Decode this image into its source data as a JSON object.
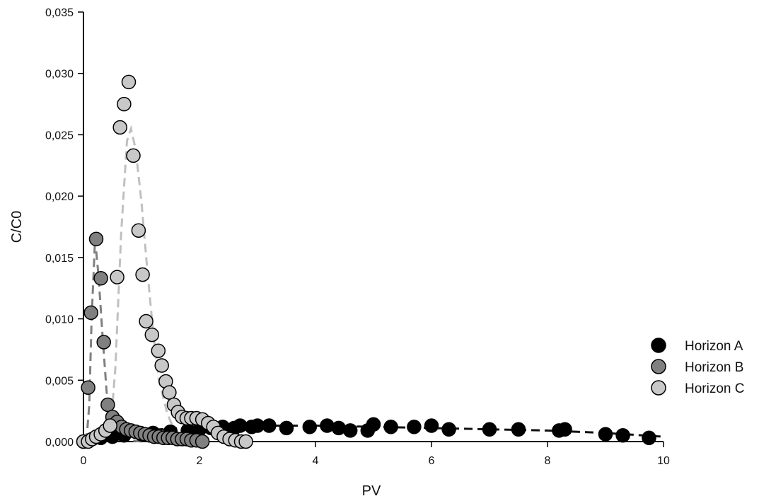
{
  "chart_data": {
    "type": "scatter",
    "title": "",
    "xlabel": "PV",
    "ylabel": "C/C0",
    "xlim": [
      0,
      10
    ],
    "ylim": [
      0,
      0.035
    ],
    "x_ticks": [
      0,
      2,
      4,
      6,
      8,
      10
    ],
    "x_tick_labels": [
      "0",
      "2",
      "4",
      "6",
      "8",
      "10"
    ],
    "y_ticks": [
      0,
      0.005,
      0.01,
      0.015,
      0.02,
      0.025,
      0.03,
      0.035
    ],
    "y_tick_labels": [
      "0,000",
      "0,005",
      "0,010",
      "0,015",
      "0,020",
      "0,025",
      "0,030",
      "0,035"
    ],
    "grid": false,
    "legend_position": "right",
    "series": [
      {
        "name": "Horizon A",
        "marker_color": "#000000",
        "fit_color": "#111111",
        "points": [
          [
            0.3,
            0.0003
          ],
          [
            0.5,
            0.0004
          ],
          [
            0.7,
            0.0005
          ],
          [
            1.0,
            0.0006
          ],
          [
            1.2,
            0.0007
          ],
          [
            1.5,
            0.0008
          ],
          [
            1.8,
            0.0009
          ],
          [
            2.0,
            0.001
          ],
          [
            2.2,
            0.0011
          ],
          [
            2.4,
            0.0012
          ],
          [
            2.6,
            0.0011
          ],
          [
            2.7,
            0.0013
          ],
          [
            2.9,
            0.0012
          ],
          [
            3.0,
            0.0013
          ],
          [
            3.2,
            0.0013
          ],
          [
            3.5,
            0.0011
          ],
          [
            3.9,
            0.0012
          ],
          [
            4.2,
            0.0013
          ],
          [
            4.4,
            0.0011
          ],
          [
            4.6,
            0.0009
          ],
          [
            4.9,
            0.0009
          ],
          [
            5.0,
            0.0014
          ],
          [
            5.3,
            0.0012
          ],
          [
            5.7,
            0.0012
          ],
          [
            6.0,
            0.0013
          ],
          [
            6.3,
            0.001
          ],
          [
            7.0,
            0.001
          ],
          [
            7.5,
            0.001
          ],
          [
            8.2,
            0.0009
          ],
          [
            8.3,
            0.001
          ],
          [
            9.0,
            0.0006
          ],
          [
            9.3,
            0.0005
          ],
          [
            9.75,
            0.0003
          ]
        ],
        "fit": [
          [
            0.1,
            0.0
          ],
          [
            0.5,
            0.0006
          ],
          [
            1.0,
            0.0009
          ],
          [
            2.0,
            0.0012
          ],
          [
            3.0,
            0.0013
          ],
          [
            4.0,
            0.0013
          ],
          [
            5.0,
            0.0012
          ],
          [
            6.0,
            0.0011
          ],
          [
            7.0,
            0.001
          ],
          [
            8.0,
            0.0009
          ],
          [
            9.0,
            0.0007
          ],
          [
            10.0,
            0.0004
          ]
        ]
      },
      {
        "name": "Horizon B",
        "marker_color": "#808080",
        "fit_color": "#808080",
        "points": [
          [
            0.0,
            0.0
          ],
          [
            0.08,
            0.0044
          ],
          [
            0.13,
            0.0105
          ],
          [
            0.22,
            0.0165
          ],
          [
            0.3,
            0.0133
          ],
          [
            0.35,
            0.0081
          ],
          [
            0.42,
            0.003
          ],
          [
            0.5,
            0.002
          ],
          [
            0.58,
            0.0016
          ],
          [
            0.66,
            0.0012
          ],
          [
            0.74,
            0.001
          ],
          [
            0.82,
            0.0009
          ],
          [
            0.9,
            0.0008
          ],
          [
            0.98,
            0.0007
          ],
          [
            1.06,
            0.0006
          ],
          [
            1.14,
            0.0005
          ],
          [
            1.22,
            0.0004
          ],
          [
            1.3,
            0.0004
          ],
          [
            1.38,
            0.0003
          ],
          [
            1.46,
            0.0003
          ],
          [
            1.54,
            0.0003
          ],
          [
            1.62,
            0.0002
          ],
          [
            1.7,
            0.0002
          ],
          [
            1.78,
            0.0002
          ],
          [
            1.86,
            0.0001
          ],
          [
            1.95,
            0.0001
          ],
          [
            2.05,
            0.0
          ]
        ],
        "fit": [
          [
            0.05,
            0.0
          ],
          [
            0.1,
            0.003
          ],
          [
            0.14,
            0.01
          ],
          [
            0.2,
            0.0165
          ],
          [
            0.26,
            0.0135
          ],
          [
            0.33,
            0.0085
          ],
          [
            0.4,
            0.004
          ],
          [
            0.5,
            0.0015
          ],
          [
            0.6,
            0.0006
          ],
          [
            0.8,
            0.0001
          ],
          [
            1.0,
            0.0
          ]
        ]
      },
      {
        "name": "Horizon C",
        "marker_color": "#c8c8c8",
        "fit_color": "#c0c0c0",
        "points": [
          [
            0.0,
            0.0
          ],
          [
            0.08,
            0.0
          ],
          [
            0.15,
            0.0002
          ],
          [
            0.22,
            0.0004
          ],
          [
            0.3,
            0.0006
          ],
          [
            0.38,
            0.0009
          ],
          [
            0.46,
            0.0013
          ],
          [
            0.58,
            0.0134
          ],
          [
            0.63,
            0.0256
          ],
          [
            0.7,
            0.0275
          ],
          [
            0.78,
            0.0293
          ],
          [
            0.86,
            0.0233
          ],
          [
            0.95,
            0.0172
          ],
          [
            1.02,
            0.0136
          ],
          [
            1.08,
            0.0098
          ],
          [
            1.18,
            0.0087
          ],
          [
            1.29,
            0.0074
          ],
          [
            1.35,
            0.0062
          ],
          [
            1.42,
            0.0049
          ],
          [
            1.48,
            0.004
          ],
          [
            1.56,
            0.003
          ],
          [
            1.63,
            0.0024
          ],
          [
            1.7,
            0.002
          ],
          [
            1.78,
            0.0019
          ],
          [
            1.86,
            0.0019
          ],
          [
            1.95,
            0.0019
          ],
          [
            2.05,
            0.0018
          ],
          [
            2.15,
            0.0015
          ],
          [
            2.24,
            0.0012
          ],
          [
            2.32,
            0.0007
          ],
          [
            2.42,
            0.0004
          ],
          [
            2.52,
            0.0002
          ],
          [
            2.62,
            0.0001
          ],
          [
            2.72,
            0.0
          ],
          [
            2.8,
            0.0
          ]
        ],
        "fit": [
          [
            0.45,
            0.0
          ],
          [
            0.55,
            0.006
          ],
          [
            0.65,
            0.017
          ],
          [
            0.75,
            0.0245
          ],
          [
            0.82,
            0.0255
          ],
          [
            0.9,
            0.0238
          ],
          [
            1.0,
            0.0195
          ],
          [
            1.1,
            0.014
          ],
          [
            1.2,
            0.009
          ],
          [
            1.3,
            0.005
          ],
          [
            1.45,
            0.0022
          ],
          [
            1.6,
            0.0006
          ],
          [
            1.8,
            0.0001
          ],
          [
            2.0,
            0.0
          ]
        ]
      }
    ]
  }
}
